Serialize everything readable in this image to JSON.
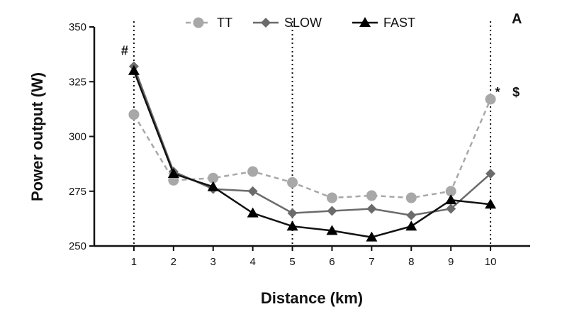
{
  "chart_data": {
    "type": "line",
    "panel_label": "A",
    "xlabel": "Distance (km)",
    "ylabel": "Power output (W)",
    "xlim": [
      0,
      11
    ],
    "ylim": [
      250,
      350
    ],
    "x_ticks": [
      1,
      2,
      3,
      4,
      5,
      6,
      7,
      8,
      9,
      10
    ],
    "y_ticks": [
      250,
      275,
      300,
      325,
      350
    ],
    "x": [
      1,
      2,
      3,
      4,
      5,
      6,
      7,
      8,
      9,
      10
    ],
    "grid": false,
    "reference_lines_x": [
      1,
      5,
      10
    ],
    "legend_position": "top",
    "series": [
      {
        "name": "TT",
        "marker": "circle",
        "dashed": true,
        "color": "#a8a8a8",
        "line_color": "#a8a8a8",
        "values": [
          310,
          280,
          281,
          284,
          279,
          272,
          273,
          272,
          275,
          317
        ]
      },
      {
        "name": "SLOW",
        "marker": "diamond",
        "dashed": false,
        "color": "#6b6b6b",
        "line_color": "#6b6b6b",
        "values": [
          332,
          284,
          276,
          275,
          265,
          266,
          267,
          264,
          267,
          283
        ]
      },
      {
        "name": "FAST",
        "marker": "triangle",
        "dashed": false,
        "color": "#000000",
        "line_color": "#111111",
        "values": [
          330,
          283,
          277,
          265,
          259,
          257,
          254,
          259,
          271,
          269
        ]
      }
    ],
    "annotations": [
      {
        "text": "#",
        "x": 1,
        "y": 332,
        "near_series": "SLOW"
      },
      {
        "text": "*",
        "x": 10,
        "y": 317,
        "near_series": "TT"
      },
      {
        "text": "$",
        "x": 10,
        "y": 317,
        "near_series": "TT"
      }
    ]
  }
}
